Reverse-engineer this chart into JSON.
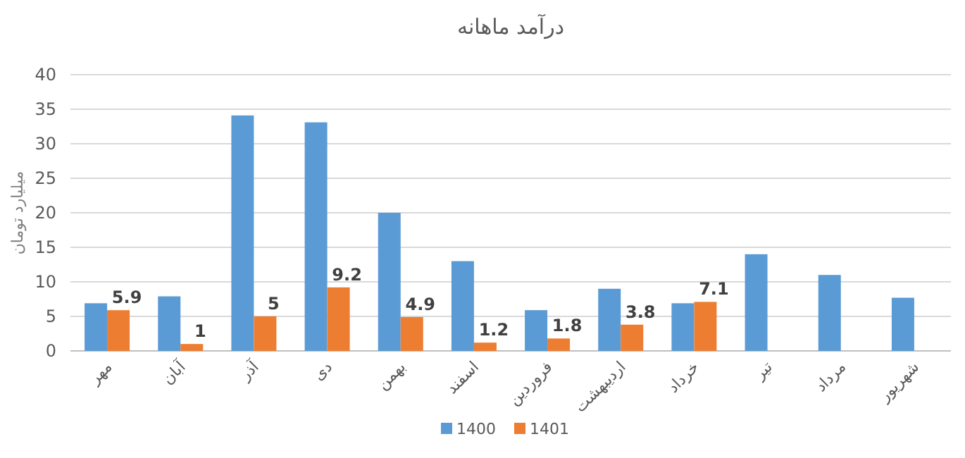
{
  "chart_data": {
    "type": "bar",
    "title": "درآمد ماهانه",
    "ylabel": "میلیارد تومان",
    "categories": [
      "مهر",
      "آبان",
      "آذر",
      "دی",
      "بهمن",
      "اسفند",
      "فروردین",
      "اردیبهشت",
      "خرداد",
      "تیر",
      "مرداد",
      "شهریور"
    ],
    "series": [
      {
        "name": "1400",
        "color": "#5b9bd5",
        "values": [
          6.9,
          7.9,
          34.1,
          33.1,
          20,
          13,
          5.9,
          9,
          6.9,
          14,
          11,
          7.7
        ]
      },
      {
        "name": "1401",
        "color": "#ed7d31",
        "values": [
          5.9,
          1,
          5,
          9.2,
          4.9,
          1.2,
          1.8,
          3.8,
          7.1,
          null,
          null,
          null
        ],
        "value_labels": [
          "5.9",
          "1",
          "5",
          "9.2",
          "4.9",
          "1.2",
          "1.8",
          "3.8",
          "7.1",
          null,
          null,
          null
        ]
      }
    ],
    "ylim": [
      0,
      40
    ],
    "yticks": [
      0,
      5,
      10,
      15,
      20,
      25,
      30,
      35,
      40
    ],
    "grid": "y",
    "legend": "bottom"
  }
}
